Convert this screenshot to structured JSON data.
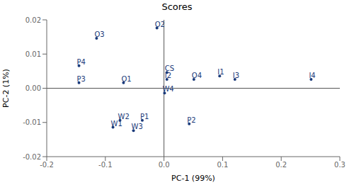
{
  "chart_data": {
    "type": "scatter",
    "title": "Scores",
    "x_label": "PC-1 (99%)",
    "y_label": "PC-2 (1%)",
    "color": "#1a3a7a",
    "grid": false,
    "xlim": [
      -0.2,
      0.3
    ],
    "ylim": [
      -0.02,
      0.02
    ],
    "xticks": [
      -0.2,
      -0.1,
      {
        "value": 0,
        "label": "0.0"
      },
      0.1,
      0.2,
      0.3
    ],
    "yticks": [
      -0.02,
      -0.01,
      {
        "value": 0,
        "label": "0.00"
      },
      0.01,
      0.02
    ],
    "points": [
      {
        "label": "O2",
        "x": -0.012,
        "y": 0.0176
      },
      {
        "label": "O3",
        "x": -0.115,
        "y": 0.0146
      },
      {
        "label": "P4",
        "x": -0.145,
        "y": 0.0066
      },
      {
        "label": "P3",
        "x": -0.145,
        "y": 0.0016
      },
      {
        "label": "O1",
        "x": -0.069,
        "y": 0.0016
      },
      {
        "label": "CS",
        "x": 0.005,
        "y": 0.0046
      },
      {
        "label": "I2",
        "x": 0.005,
        "y": 0.0026
      },
      {
        "label": "W4",
        "x": 0.001,
        "y": -0.0014
      },
      {
        "label": "O4",
        "x": 0.051,
        "y": 0.0026
      },
      {
        "label": "I1",
        "x": 0.095,
        "y": 0.0036
      },
      {
        "label": "I3",
        "x": 0.121,
        "y": 0.0026
      },
      {
        "label": "I4",
        "x": 0.251,
        "y": 0.0026
      },
      {
        "label": "W2",
        "x": -0.075,
        "y": -0.0094
      },
      {
        "label": "W1",
        "x": -0.087,
        "y": -0.0114
      },
      {
        "label": "P1",
        "x": -0.037,
        "y": -0.0094
      },
      {
        "label": "W3",
        "x": -0.052,
        "y": -0.0124
      },
      {
        "label": "P2",
        "x": 0.043,
        "y": -0.0104
      }
    ]
  }
}
